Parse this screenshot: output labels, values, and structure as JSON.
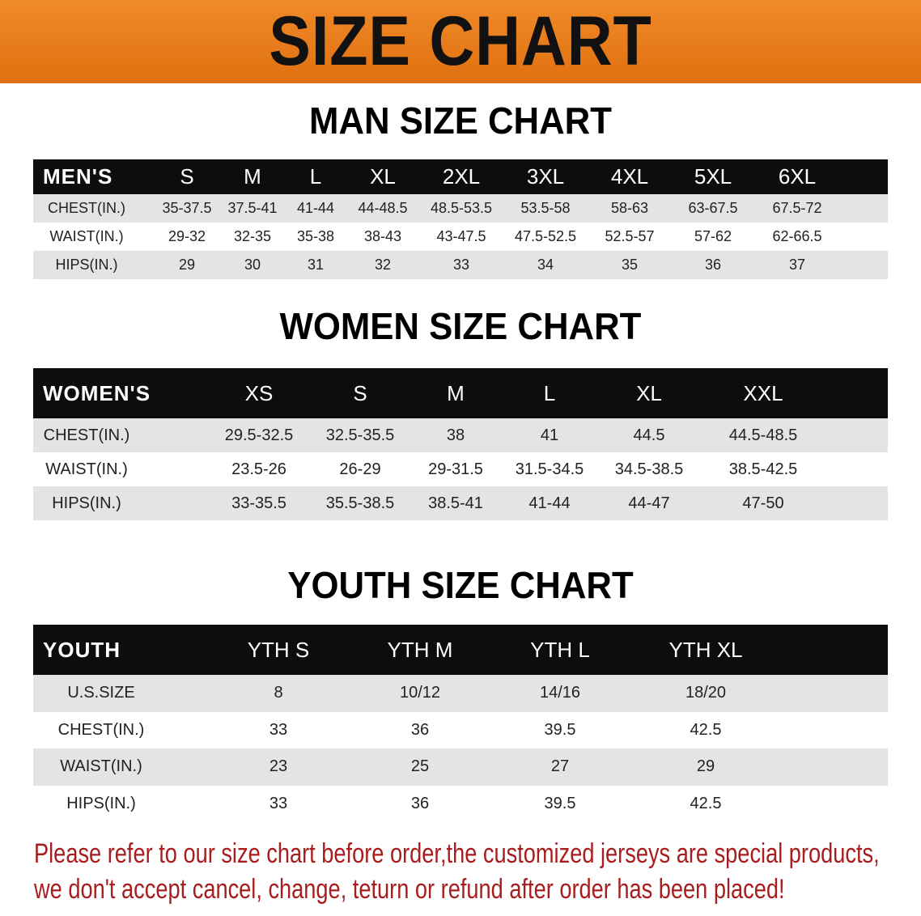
{
  "banner_title": "SIZE CHART",
  "men": {
    "title": "MAN SIZE CHART",
    "header": [
      "MEN'S",
      "S",
      "M",
      "L",
      "XL",
      "2XL",
      "3XL",
      "4XL",
      "5XL",
      "6XL"
    ],
    "rows": [
      [
        "CHEST(IN.)",
        "35-37.5",
        "37.5-41",
        "41-44",
        "44-48.5",
        "48.5-53.5",
        "53.5-58",
        "58-63",
        "63-67.5",
        "67.5-72"
      ],
      [
        "WAIST(IN.)",
        "29-32",
        "32-35",
        "35-38",
        "38-43",
        "43-47.5",
        "47.5-52.5",
        "52.5-57",
        "57-62",
        "62-66.5"
      ],
      [
        "HIPS(IN.)",
        "29",
        "30",
        "31",
        "32",
        "33",
        "34",
        "35",
        "36",
        "37"
      ]
    ]
  },
  "women": {
    "title": "WOMEN SIZE CHART",
    "header": [
      "WOMEN'S",
      "XS",
      "S",
      "M",
      "L",
      "XL",
      "XXL"
    ],
    "rows": [
      [
        "CHEST(IN.)",
        "29.5-32.5",
        "32.5-35.5",
        "38",
        "41",
        "44.5",
        "44.5-48.5"
      ],
      [
        "WAIST(IN.)",
        "23.5-26",
        "26-29",
        "29-31.5",
        "31.5-34.5",
        "34.5-38.5",
        "38.5-42.5"
      ],
      [
        "HIPS(IN.)",
        "33-35.5",
        "35.5-38.5",
        "38.5-41",
        "41-44",
        "44-47",
        "47-50"
      ]
    ]
  },
  "youth": {
    "title": "YOUTH SIZE CHART",
    "header": [
      "YOUTH",
      "YTH S",
      "YTH M",
      "YTH L",
      "YTH XL"
    ],
    "rows": [
      [
        "U.S.SIZE",
        "8",
        "10/12",
        "14/16",
        "18/20"
      ],
      [
        "CHEST(IN.)",
        "33",
        "36",
        "39.5",
        "42.5"
      ],
      [
        "WAIST(IN.)",
        "23",
        "25",
        "27",
        "29"
      ],
      [
        "HIPS(IN.)",
        "33",
        "36",
        "39.5",
        "42.5"
      ]
    ]
  },
  "notice": {
    "line1": "Please refer to our size chart before order,the customized jerseys are special products,",
    "line2": "we don't accept cancel, change, teturn or refund after order has been placed!"
  },
  "colors": {
    "banner": "#e8761c",
    "header_bg": "#0d0d0d",
    "stripe": "#e4e4e4",
    "notice": "#a81d1d"
  }
}
